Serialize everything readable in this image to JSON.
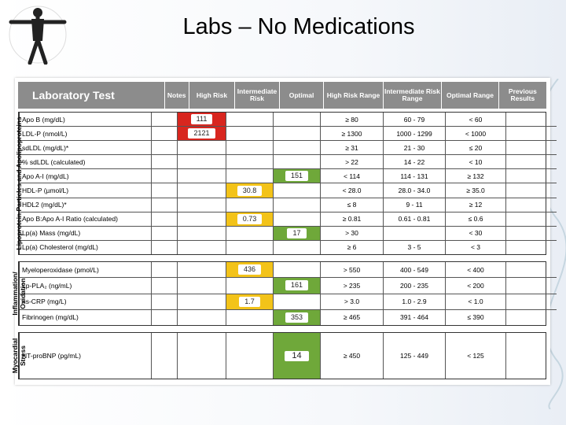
{
  "slide": {
    "title": "Labs – No Medications"
  },
  "table": {
    "headers": {
      "test": "Laboratory Test",
      "notes": "Notes",
      "high": "High Risk",
      "intermediate": "Intermediate Risk",
      "optimal": "Optimal",
      "high_range": "High Risk Range",
      "intermediate_range": "Intermediate Risk Range",
      "optimal_range": "Optimal Range",
      "previous": "Previous Results"
    },
    "sections": [
      {
        "label": "Lipoprotein Particles and Apolipoproteins",
        "rows": [
          {
            "test": "Apo B (mg/dL)",
            "high": "111",
            "intermediate": "",
            "optimal": "",
            "hr": "≥ 80",
            "ir": "60 - 79",
            "or": "< 60"
          },
          {
            "test": "LDL-P (nmol/L)",
            "high": "2121",
            "intermediate": "",
            "optimal": "",
            "hr": "≥ 1300",
            "ir": "1000 - 1299",
            "or": "< 1000"
          },
          {
            "test": "sdLDL (mg/dL)*",
            "high": "",
            "intermediate": "",
            "optimal": "",
            "hr": "≥ 31",
            "ir": "21 - 30",
            "or": "≤ 20"
          },
          {
            "test": "% sdLDL (calculated)",
            "high": "",
            "intermediate": "",
            "optimal": "",
            "hr": "> 22",
            "ir": "14 - 22",
            "or": "< 10"
          },
          {
            "test": "Apo A-I (mg/dL)",
            "high": "",
            "intermediate": "",
            "optimal": "151",
            "hr": "< 114",
            "ir": "114 - 131",
            "or": "≥ 132"
          },
          {
            "test": "HDL-P (µmol/L)",
            "high": "",
            "intermediate": "30.8",
            "optimal": "",
            "hr": "< 28.0",
            "ir": "28.0 - 34.0",
            "or": "≥ 35.0"
          },
          {
            "test": "HDL2 (mg/dL)*",
            "high": "",
            "intermediate": "",
            "optimal": "",
            "hr": "≤ 8",
            "ir": "9 - 11",
            "or": "≥ 12"
          },
          {
            "test": "Apo B:Apo A-I Ratio (calculated)",
            "high": "",
            "intermediate": "0.73",
            "optimal": "",
            "hr": "≥ 0.81",
            "ir": "0.61 - 0.81",
            "or": "≤ 0.6"
          },
          {
            "test": "Lp(a) Mass (mg/dL)",
            "high": "",
            "intermediate": "",
            "optimal": "17",
            "hr": "> 30",
            "ir": "",
            "or": "< 30"
          },
          {
            "test": "Lp(a) Cholesterol (mg/dL)",
            "high": "",
            "intermediate": "",
            "optimal": "",
            "hr": "≥ 6",
            "ir": "3 - 5",
            "or": "< 3"
          }
        ]
      },
      {
        "label": "Inflammation/ Oxidation",
        "rows": [
          {
            "test": "Myeloperoxidase (pmol/L)",
            "high": "",
            "intermediate": "436",
            "optimal": "",
            "hr": "> 550",
            "ir": "400 - 549",
            "or": "< 400"
          },
          {
            "test": "Lp-PLA₂ (ng/mL)",
            "high": "",
            "intermediate": "",
            "optimal": "161",
            "hr": "> 235",
            "ir": "200 - 235",
            "or": "< 200"
          },
          {
            "test": "hs-CRP (mg/L)",
            "high": "",
            "intermediate": "1.7",
            "optimal": "",
            "hr": "> 3.0",
            "ir": "1.0 - 2.9",
            "or": "< 1.0"
          },
          {
            "test": "Fibrinogen (mg/dL)",
            "high": "",
            "intermediate": "",
            "optimal": "353",
            "hr": "≥ 465",
            "ir": "391 - 464",
            "or": "≤ 390"
          }
        ]
      },
      {
        "label": "Myocardial Stress",
        "rows": [
          {
            "test": "NT-proBNP (pg/mL)",
            "high": "",
            "intermediate": "",
            "optimal": "14",
            "hr": "≥ 450",
            "ir": "125 - 449",
            "or": "< 125"
          }
        ]
      }
    ]
  },
  "colors": {
    "high": "#d8261f",
    "intermediate": "#f3c319",
    "optimal": "#6fa83a"
  }
}
